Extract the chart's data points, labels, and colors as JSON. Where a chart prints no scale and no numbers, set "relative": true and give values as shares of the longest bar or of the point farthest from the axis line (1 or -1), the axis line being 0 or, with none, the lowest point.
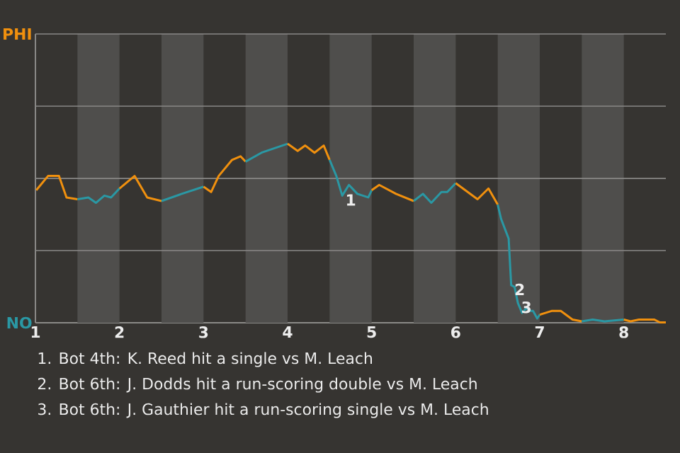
{
  "chart_data": {
    "type": "line",
    "relative": true,
    "xlim": [
      1,
      8.5
    ],
    "xticks": [
      {
        "value": 1,
        "label": "1"
      },
      {
        "value": 2,
        "label": "2"
      },
      {
        "value": 3,
        "label": "3"
      },
      {
        "value": 4,
        "label": "4"
      },
      {
        "value": 5,
        "label": "5"
      },
      {
        "value": 6,
        "label": "6"
      },
      {
        "value": 7,
        "label": "7"
      },
      {
        "value": 8,
        "label": "8"
      }
    ],
    "marker": "none",
    "line_style": "solid",
    "ref_lines": [
      {
        "axis": "y",
        "value": 0.403,
        "color": "#8a8987"
      },
      {
        "axis": "y",
        "value": 0.806,
        "color": "#8a8987"
      },
      {
        "axis": "y",
        "value": 1.21,
        "color": "#8a8987"
      },
      {
        "axis": "y",
        "value": 1.613,
        "color": "#8a8987"
      }
    ],
    "series": [
      {
        "color": "#f0900e",
        "x": [
          1.01,
          1.15,
          1.28,
          1.37,
          1.5
        ],
        "values": [
          0.74,
          0.82,
          0.82,
          0.7,
          0.69
        ]
      },
      {
        "color": "#2a98a4",
        "x": [
          1.5,
          1.63,
          1.72,
          1.82,
          1.9,
          2
        ],
        "values": [
          0.69,
          0.7,
          0.67,
          0.71,
          0.7,
          0.75
        ]
      },
      {
        "color": "#f0900e",
        "x": [
          2,
          2.18,
          2.33,
          2.5
        ],
        "values": [
          0.75,
          0.82,
          0.7,
          0.68
        ]
      },
      {
        "color": "#2a98a4",
        "x": [
          2.5,
          2.74,
          3
        ],
        "values": [
          0.68,
          0.72,
          0.76
        ]
      },
      {
        "color": "#f0900e",
        "x": [
          3,
          3.09,
          3.18,
          3.34,
          3.44,
          3.5
        ],
        "values": [
          0.76,
          0.73,
          0.82,
          0.91,
          0.93,
          0.9
        ]
      },
      {
        "color": "#2a98a4",
        "x": [
          3.5,
          3.69,
          4
        ],
        "values": [
          0.9,
          0.95,
          1
        ]
      },
      {
        "color": "#f0900e",
        "x": [
          4,
          4.12,
          4.21,
          4.32,
          4.43,
          4.5
        ],
        "values": [
          1,
          0.96,
          0.99,
          0.95,
          0.99,
          0.91
        ]
      },
      {
        "color": "#2a98a4",
        "x": [
          4.5,
          4.58,
          4.65,
          4.73,
          4.83,
          4.96,
          5
        ],
        "values": [
          0.91,
          0.82,
          0.71,
          0.77,
          0.72,
          0.7,
          0.74
        ]
      },
      {
        "color": "#f0900e",
        "x": [
          5,
          5.09,
          5.29,
          5.5
        ],
        "values": [
          0.74,
          0.77,
          0.72,
          0.68
        ]
      },
      {
        "color": "#2a98a4",
        "x": [
          5.5,
          5.61,
          5.71,
          5.83,
          5.9,
          6
        ],
        "values": [
          0.68,
          0.72,
          0.67,
          0.73,
          0.73,
          0.78
        ]
      },
      {
        "color": "#f0900e",
        "x": [
          6,
          6.26,
          6.39,
          6.5
        ],
        "values": [
          0.78,
          0.69,
          0.75,
          0.66
        ]
      },
      {
        "color": "#2a98a4",
        "x": [
          6.5,
          6.54,
          6.63,
          6.66,
          6.7,
          6.74,
          6.79,
          6.84,
          6.89,
          6.92,
          6.97,
          7
        ],
        "values": [
          0.66,
          0.58,
          0.47,
          0.21,
          0.2,
          0.11,
          0.055,
          0.081,
          0.066,
          0.066,
          0.024,
          0.045
        ]
      },
      {
        "color": "#f0900e",
        "x": [
          7,
          7.14,
          7.25,
          7.39,
          7.5
        ],
        "values": [
          0.045,
          0.066,
          0.066,
          0.018,
          0.008
        ]
      },
      {
        "color": "#2a98a4",
        "x": [
          7.5,
          7.63,
          7.77,
          8
        ],
        "values": [
          0.008,
          0.018,
          0.008,
          0.018
        ]
      },
      {
        "color": "#f0900e",
        "x": [
          8,
          8.08,
          8.18,
          8.36,
          8.43,
          8.5
        ],
        "values": [
          0.018,
          0.008,
          0.018,
          0.018,
          0.002,
          0.002
        ]
      }
    ],
    "bands": [
      {
        "axis": "x",
        "from": 1.5,
        "to": 2,
        "color": "#4f4e4c"
      },
      {
        "axis": "x",
        "from": 2.5,
        "to": 3,
        "color": "#4f4e4c"
      },
      {
        "axis": "x",
        "from": 3.5,
        "to": 4,
        "color": "#4f4e4c"
      },
      {
        "axis": "x",
        "from": 4.5,
        "to": 5,
        "color": "#4f4e4c"
      },
      {
        "axis": "x",
        "from": 5.5,
        "to": 6,
        "color": "#4f4e4c"
      },
      {
        "axis": "x",
        "from": 6.5,
        "to": 7,
        "color": "#4f4e4c"
      },
      {
        "axis": "x",
        "from": 7.5,
        "to": 8,
        "color": "#4f4e4c"
      }
    ],
    "annotations": [
      "PHI",
      "NO",
      {
        "text": "1",
        "x": 4.65,
        "y": 0.71
      },
      {
        "text": "2",
        "x": 6.66,
        "y": 0.21
      },
      {
        "text": "3",
        "x": 6.74,
        "y": 0.11
      },
      "1. Bot 4th: K. Reed hit a single vs M. Leach",
      "2. Bot 6th: J. Dodds hit a run-scoring double vs M. Leach",
      "3. Bot 6th: J. Gauthier hit a run-scoring single vs M. Leach"
    ]
  }
}
